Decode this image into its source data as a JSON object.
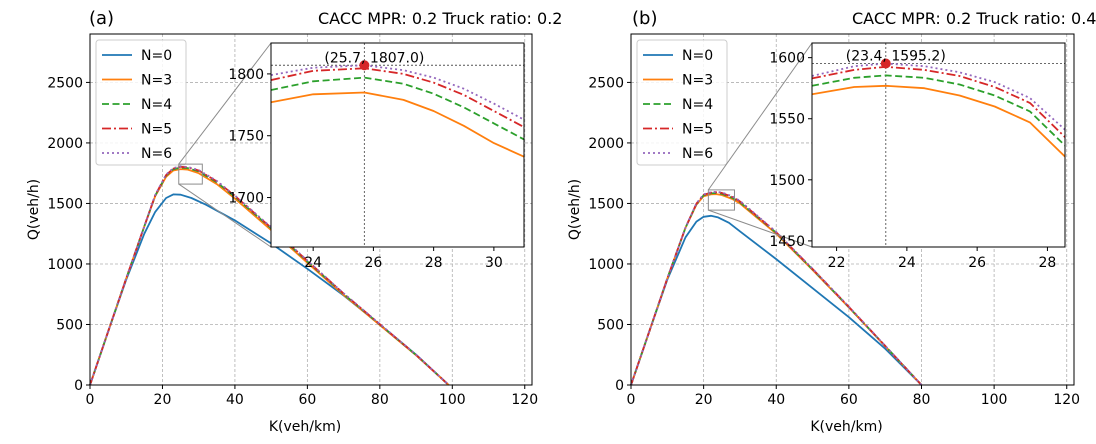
{
  "chart_data": [
    {
      "type": "line",
      "panel_label": "(a)",
      "title": "CACC MPR: 0.2 Truck ratio: 0.2",
      "xlabel": "K(veh/km)",
      "ylabel": "Q(veh/h)",
      "xlim": [
        0,
        122
      ],
      "ylim": [
        0,
        2900
      ],
      "xticks": [
        "0",
        "20",
        "40",
        "60",
        "80",
        "100",
        "120"
      ],
      "yticks": [
        "0",
        "500",
        "1000",
        "1500",
        "2000",
        "2500"
      ],
      "grid": true,
      "legend_position": "top-left",
      "series": [
        {
          "name": "N=0",
          "color": "#1f77b4",
          "style": "solid",
          "x": [
            0,
            5,
            10,
            15,
            18,
            21,
            23,
            25,
            28,
            32,
            40,
            50,
            60,
            70,
            80,
            90,
            99
          ],
          "y": [
            0,
            440,
            870,
            1250,
            1430,
            1545,
            1575,
            1572,
            1545,
            1490,
            1360,
            1170,
            960,
            740,
            500,
            250,
            0
          ]
        },
        {
          "name": "N=3",
          "color": "#ff7f0e",
          "style": "solid",
          "x": [
            0,
            5,
            10,
            15,
            18,
            21,
            23,
            25,
            27,
            30,
            35,
            40,
            50,
            60,
            70,
            80,
            90,
            99
          ],
          "y": [
            0,
            440,
            880,
            1310,
            1560,
            1720,
            1772,
            1784,
            1780,
            1750,
            1660,
            1540,
            1280,
            1010,
            745,
            495,
            245,
            0
          ]
        },
        {
          "name": "N=4",
          "color": "#2ca02c",
          "style": "dashed",
          "x": [
            0,
            5,
            10,
            15,
            18,
            21,
            23,
            25,
            27,
            30,
            35,
            40,
            50,
            60,
            70,
            80,
            90,
            99
          ],
          "y": [
            0,
            440,
            880,
            1310,
            1565,
            1730,
            1782,
            1796,
            1792,
            1765,
            1675,
            1555,
            1295,
            1020,
            752,
            500,
            248,
            0
          ]
        },
        {
          "name": "N=5",
          "color": "#d62728",
          "style": "dashdot",
          "x": [
            0,
            5,
            10,
            15,
            18,
            21,
            23,
            25,
            27,
            30,
            35,
            40,
            50,
            60,
            70,
            80,
            90,
            99
          ],
          "y": [
            0,
            440,
            880,
            1310,
            1568,
            1735,
            1788,
            1803,
            1798,
            1772,
            1682,
            1562,
            1300,
            1025,
            756,
            502,
            249,
            0
          ]
        },
        {
          "name": "N=6",
          "color": "#9467bd",
          "style": "dotted",
          "x": [
            0,
            5,
            10,
            15,
            18,
            21,
            23,
            25,
            27,
            30,
            35,
            40,
            50,
            60,
            70,
            80,
            90,
            99
          ],
          "y": [
            0,
            440,
            880,
            1310,
            1570,
            1738,
            1792,
            1806,
            1801,
            1776,
            1686,
            1566,
            1304,
            1028,
            758,
            504,
            250,
            0
          ]
        }
      ],
      "inset": {
        "xlim": [
          22.6,
          31
        ],
        "ylim": [
          1660,
          1825
        ],
        "xticks": [
          "24",
          "26",
          "28",
          "30"
        ],
        "yticks": [
          "1700",
          "1750",
          "1800"
        ],
        "source_box_x": [
          24.5,
          31
        ],
        "source_box_y": [
          1660,
          1825
        ],
        "series_x": [
          22.6,
          24,
          25.7,
          27,
          28,
          29,
          30,
          31
        ],
        "series_y": {
          "N=3": [
            1777,
            1783.5,
            1785,
            1779,
            1770,
            1758,
            1744,
            1733
          ],
          "N=4": [
            1787,
            1794,
            1797,
            1792,
            1784,
            1773,
            1760,
            1747
          ],
          "N=5": [
            1795,
            1802.5,
            1804.5,
            1800,
            1793,
            1783,
            1770,
            1757
          ],
          "N=6": [
            1799,
            1805,
            1807,
            1803,
            1797,
            1788,
            1776,
            1763
          ]
        },
        "peak": {
          "x": 25.7,
          "y": 1807.0,
          "label": "(25.7, 1807.0)"
        }
      }
    },
    {
      "type": "line",
      "panel_label": "(b)",
      "title": "CACC MPR: 0.2 Truck ratio: 0.4",
      "xlabel": "K(veh/km)",
      "ylabel": "Q(veh/h)",
      "xlim": [
        0,
        122
      ],
      "ylim": [
        0,
        2900
      ],
      "xticks": [
        "0",
        "20",
        "40",
        "60",
        "80",
        "100",
        "120"
      ],
      "yticks": [
        "0",
        "500",
        "1000",
        "1500",
        "2000",
        "2500"
      ],
      "grid": true,
      "legend_position": "top-left",
      "series": [
        {
          "name": "N=0",
          "color": "#1f77b4",
          "style": "solid",
          "x": [
            0,
            5,
            10,
            15,
            18,
            20,
            22,
            24,
            27,
            30,
            40,
            50,
            60,
            70,
            80
          ],
          "y": [
            0,
            440,
            870,
            1220,
            1350,
            1390,
            1398,
            1385,
            1340,
            1270,
            1040,
            800,
            560,
            300,
            0
          ]
        },
        {
          "name": "N=3",
          "color": "#ff7f0e",
          "style": "solid",
          "x": [
            0,
            5,
            10,
            15,
            18,
            20,
            22,
            23.4,
            25,
            28,
            30,
            40,
            50,
            60,
            70,
            80
          ],
          "y": [
            0,
            440,
            880,
            1300,
            1490,
            1560,
            1575,
            1577,
            1570,
            1535,
            1500,
            1250,
            950,
            640,
            320,
            0
          ]
        },
        {
          "name": "N=4",
          "color": "#2ca02c",
          "style": "dashed",
          "x": [
            0,
            5,
            10,
            15,
            18,
            20,
            22,
            23.4,
            25,
            28,
            30,
            40,
            50,
            60,
            70,
            80
          ],
          "y": [
            0,
            440,
            880,
            1300,
            1495,
            1567,
            1583,
            1586,
            1580,
            1545,
            1510,
            1258,
            955,
            643,
            322,
            0
          ]
        },
        {
          "name": "N=5",
          "color": "#d62728",
          "style": "dashdot",
          "x": [
            0,
            5,
            10,
            15,
            18,
            20,
            22,
            23.4,
            25,
            28,
            30,
            40,
            50,
            60,
            70,
            80
          ],
          "y": [
            0,
            440,
            880,
            1300,
            1498,
            1572,
            1589,
            1592,
            1587,
            1552,
            1517,
            1262,
            958,
            645,
            323,
            0
          ]
        },
        {
          "name": "N=6",
          "color": "#9467bd",
          "style": "dotted",
          "x": [
            0,
            5,
            10,
            15,
            18,
            20,
            22,
            23.4,
            25,
            28,
            30,
            40,
            50,
            60,
            70,
            80
          ],
          "y": [
            0,
            440,
            880,
            1300,
            1500,
            1575,
            1593,
            1595.2,
            1591,
            1557,
            1522,
            1265,
            960,
            647,
            324,
            0
          ]
        }
      ],
      "inset": {
        "xlim": [
          21.3,
          28.5
        ],
        "ylim": [
          1445,
          1612
        ],
        "xticks": [
          "22",
          "24",
          "26",
          "28"
        ],
        "yticks": [
          "1450",
          "1500",
          "1550",
          "1600"
        ],
        "source_box_x": [
          21.3,
          28.5
        ],
        "source_box_y": [
          1445,
          1612
        ],
        "series_x": [
          21.3,
          22.5,
          23.4,
          24.5,
          25.5,
          26.5,
          27.5,
          28.5
        ],
        "series_y": {
          "N=3": [
            1570,
            1576,
            1577,
            1575,
            1569,
            1560,
            1547,
            1519
          ],
          "N=4": [
            1577,
            1583.5,
            1585.5,
            1583.5,
            1578,
            1569,
            1556,
            1528
          ],
          "N=5": [
            1583,
            1590,
            1592.5,
            1590,
            1585,
            1576,
            1563,
            1535
          ],
          "N=6": [
            1585,
            1593,
            1595.2,
            1593,
            1588,
            1580,
            1567,
            1541
          ]
        },
        "peak": {
          "x": 23.4,
          "y": 1595.2,
          "label": "(23.4, 1595.2)"
        }
      }
    }
  ]
}
